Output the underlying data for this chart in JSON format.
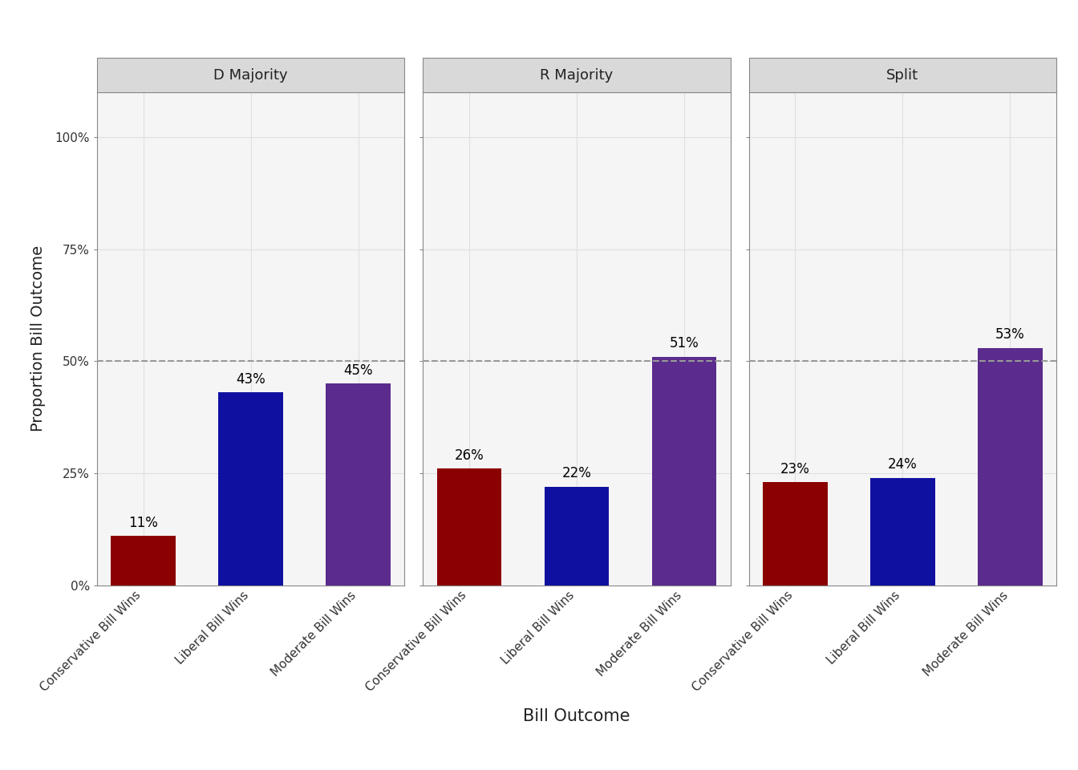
{
  "panels": [
    "D Majority",
    "R Majority",
    "Split"
  ],
  "categories": [
    "Conservative Bill Wins",
    "Liberal Bill Wins",
    "Moderate Bill Wins"
  ],
  "values": {
    "D Majority": [
      0.11,
      0.43,
      0.45
    ],
    "R Majority": [
      0.26,
      0.22,
      0.51
    ],
    "Split": [
      0.23,
      0.24,
      0.53
    ]
  },
  "bar_colors": [
    "#8B0000",
    "#1010A0",
    "#5B2C8D"
  ],
  "labels": {
    "D Majority": [
      "11%",
      "43%",
      "45%"
    ],
    "R Majority": [
      "26%",
      "22%",
      "51%"
    ],
    "Split": [
      "23%",
      "24%",
      "53%"
    ]
  },
  "xlabel": "Bill Outcome",
  "ylabel": "Proportion Bill Outcome",
  "ylim": [
    0,
    1.1
  ],
  "yticks": [
    0.0,
    0.25,
    0.5,
    0.75,
    1.0
  ],
  "ytick_labels": [
    "0%",
    "25%",
    "50%",
    "75%",
    "100%"
  ],
  "hline_y": 0.5,
  "hline_color": "#999999",
  "panel_header_color": "#D9D9D9",
  "panel_header_text_color": "#222222",
  "background_color": "#FFFFFF",
  "plot_bg_color": "#F5F5F5",
  "grid_color": "#E0E0E0",
  "bar_width": 0.6,
  "axis_label_fontsize": 14,
  "tick_fontsize": 11,
  "annotation_fontsize": 12,
  "panel_header_fontsize": 13
}
